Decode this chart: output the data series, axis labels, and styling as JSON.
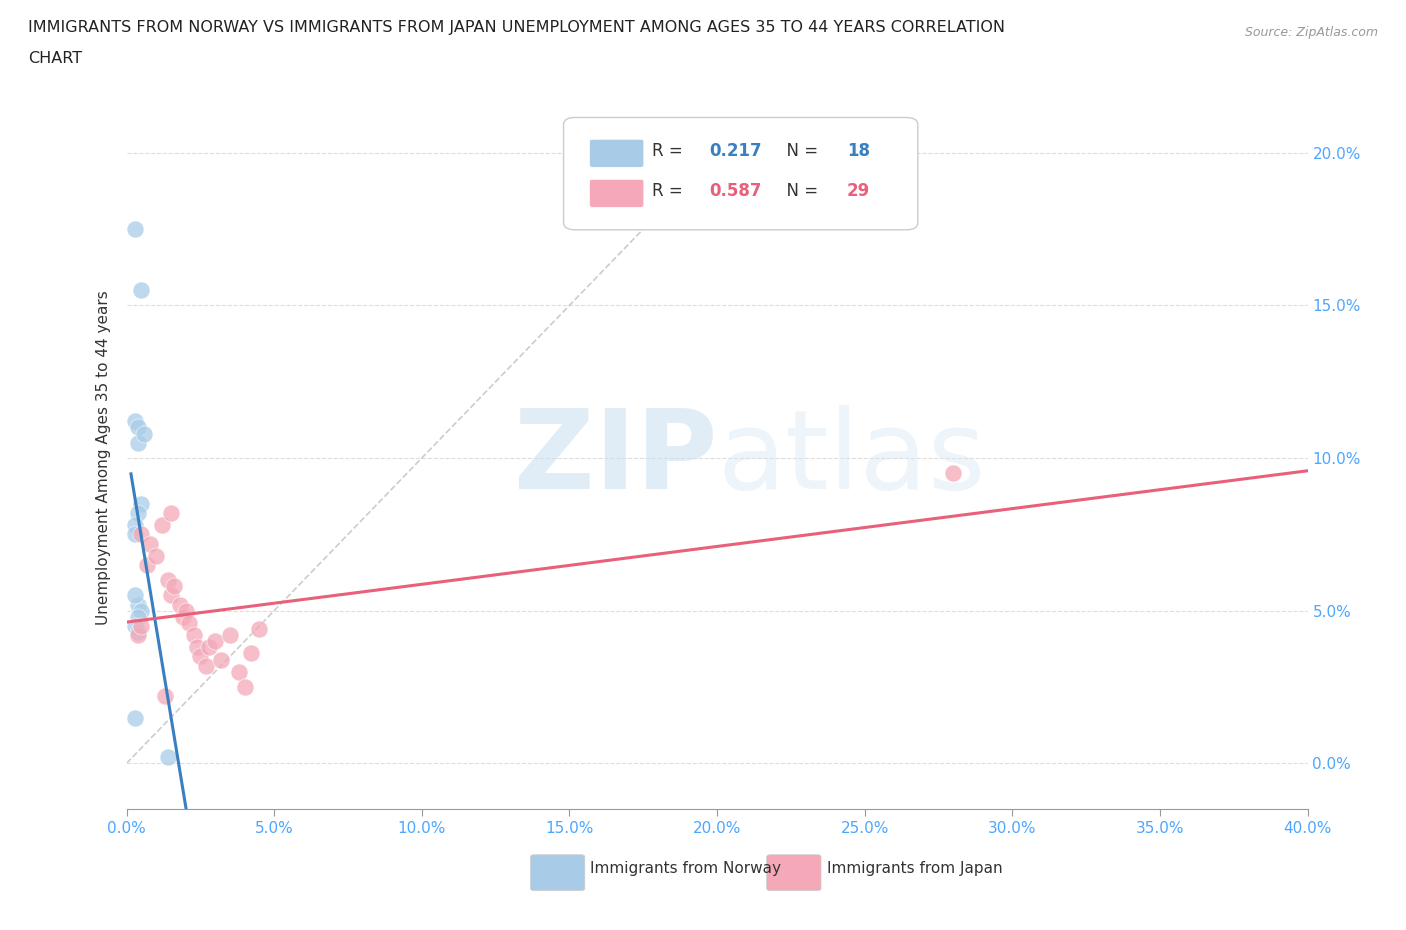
{
  "title_line1": "IMMIGRANTS FROM NORWAY VS IMMIGRANTS FROM JAPAN UNEMPLOYMENT AMONG AGES 35 TO 44 YEARS CORRELATION",
  "title_line2": "CHART",
  "source": "Source: ZipAtlas.com",
  "ylabel": "Unemployment Among Ages 35 to 44 years",
  "xlabel_ticks": [
    "0.0%",
    "5.0%",
    "10.0%",
    "15.0%",
    "20.0%",
    "25.0%",
    "30.0%",
    "35.0%",
    "40.0%"
  ],
  "ylabel_ticks": [
    "0.0%",
    "5.0%",
    "10.0%",
    "15.0%",
    "20.0%"
  ],
  "xlim": [
    0.0,
    40.0
  ],
  "ylim": [
    -1.5,
    21.5
  ],
  "norway_R": 0.217,
  "norway_N": 18,
  "japan_R": 0.587,
  "japan_N": 29,
  "norway_color": "#a8cce8",
  "japan_color": "#f4a8b8",
  "norway_line_color": "#3a7fbf",
  "japan_line_color": "#e8607a",
  "norway_R_color": "#3a7fbf",
  "japan_R_color": "#e8607a",
  "diagonal_color": "#cccccc",
  "norway_scatter_x": [
    0.3,
    0.5,
    0.3,
    0.4,
    0.4,
    0.5,
    0.6,
    0.4,
    0.3,
    0.3,
    0.4,
    0.5,
    0.4,
    0.3,
    0.3,
    0.4,
    0.3,
    1.4
  ],
  "norway_scatter_y": [
    17.5,
    15.5,
    11.2,
    11.0,
    10.5,
    8.5,
    10.8,
    8.2,
    7.8,
    7.5,
    5.2,
    5.0,
    4.8,
    5.5,
    4.5,
    4.3,
    1.5,
    0.2
  ],
  "japan_scatter_x": [
    0.4,
    0.5,
    0.5,
    0.7,
    0.8,
    1.0,
    1.2,
    1.4,
    1.5,
    1.5,
    1.6,
    1.8,
    1.9,
    2.0,
    2.1,
    2.3,
    2.4,
    2.5,
    2.7,
    2.8,
    3.0,
    3.2,
    3.5,
    3.8,
    4.0,
    4.2,
    4.5,
    28.0,
    1.3
  ],
  "japan_scatter_y": [
    4.2,
    4.5,
    7.5,
    6.5,
    7.2,
    6.8,
    7.8,
    6.0,
    8.2,
    5.5,
    5.8,
    5.2,
    4.8,
    5.0,
    4.6,
    4.2,
    3.8,
    3.5,
    3.2,
    3.8,
    4.0,
    3.4,
    4.2,
    3.0,
    2.5,
    3.6,
    4.4,
    9.5,
    2.2
  ],
  "watermark_zip": "ZIP",
  "watermark_atlas": "atlas",
  "background_color": "#ffffff",
  "legend_norway_label": "Immigrants from Norway",
  "legend_japan_label": "Immigrants from Japan",
  "grid_color": "#dddddd",
  "axis_color": "#999999",
  "tick_color": "#4da6ff",
  "text_color": "#333333"
}
